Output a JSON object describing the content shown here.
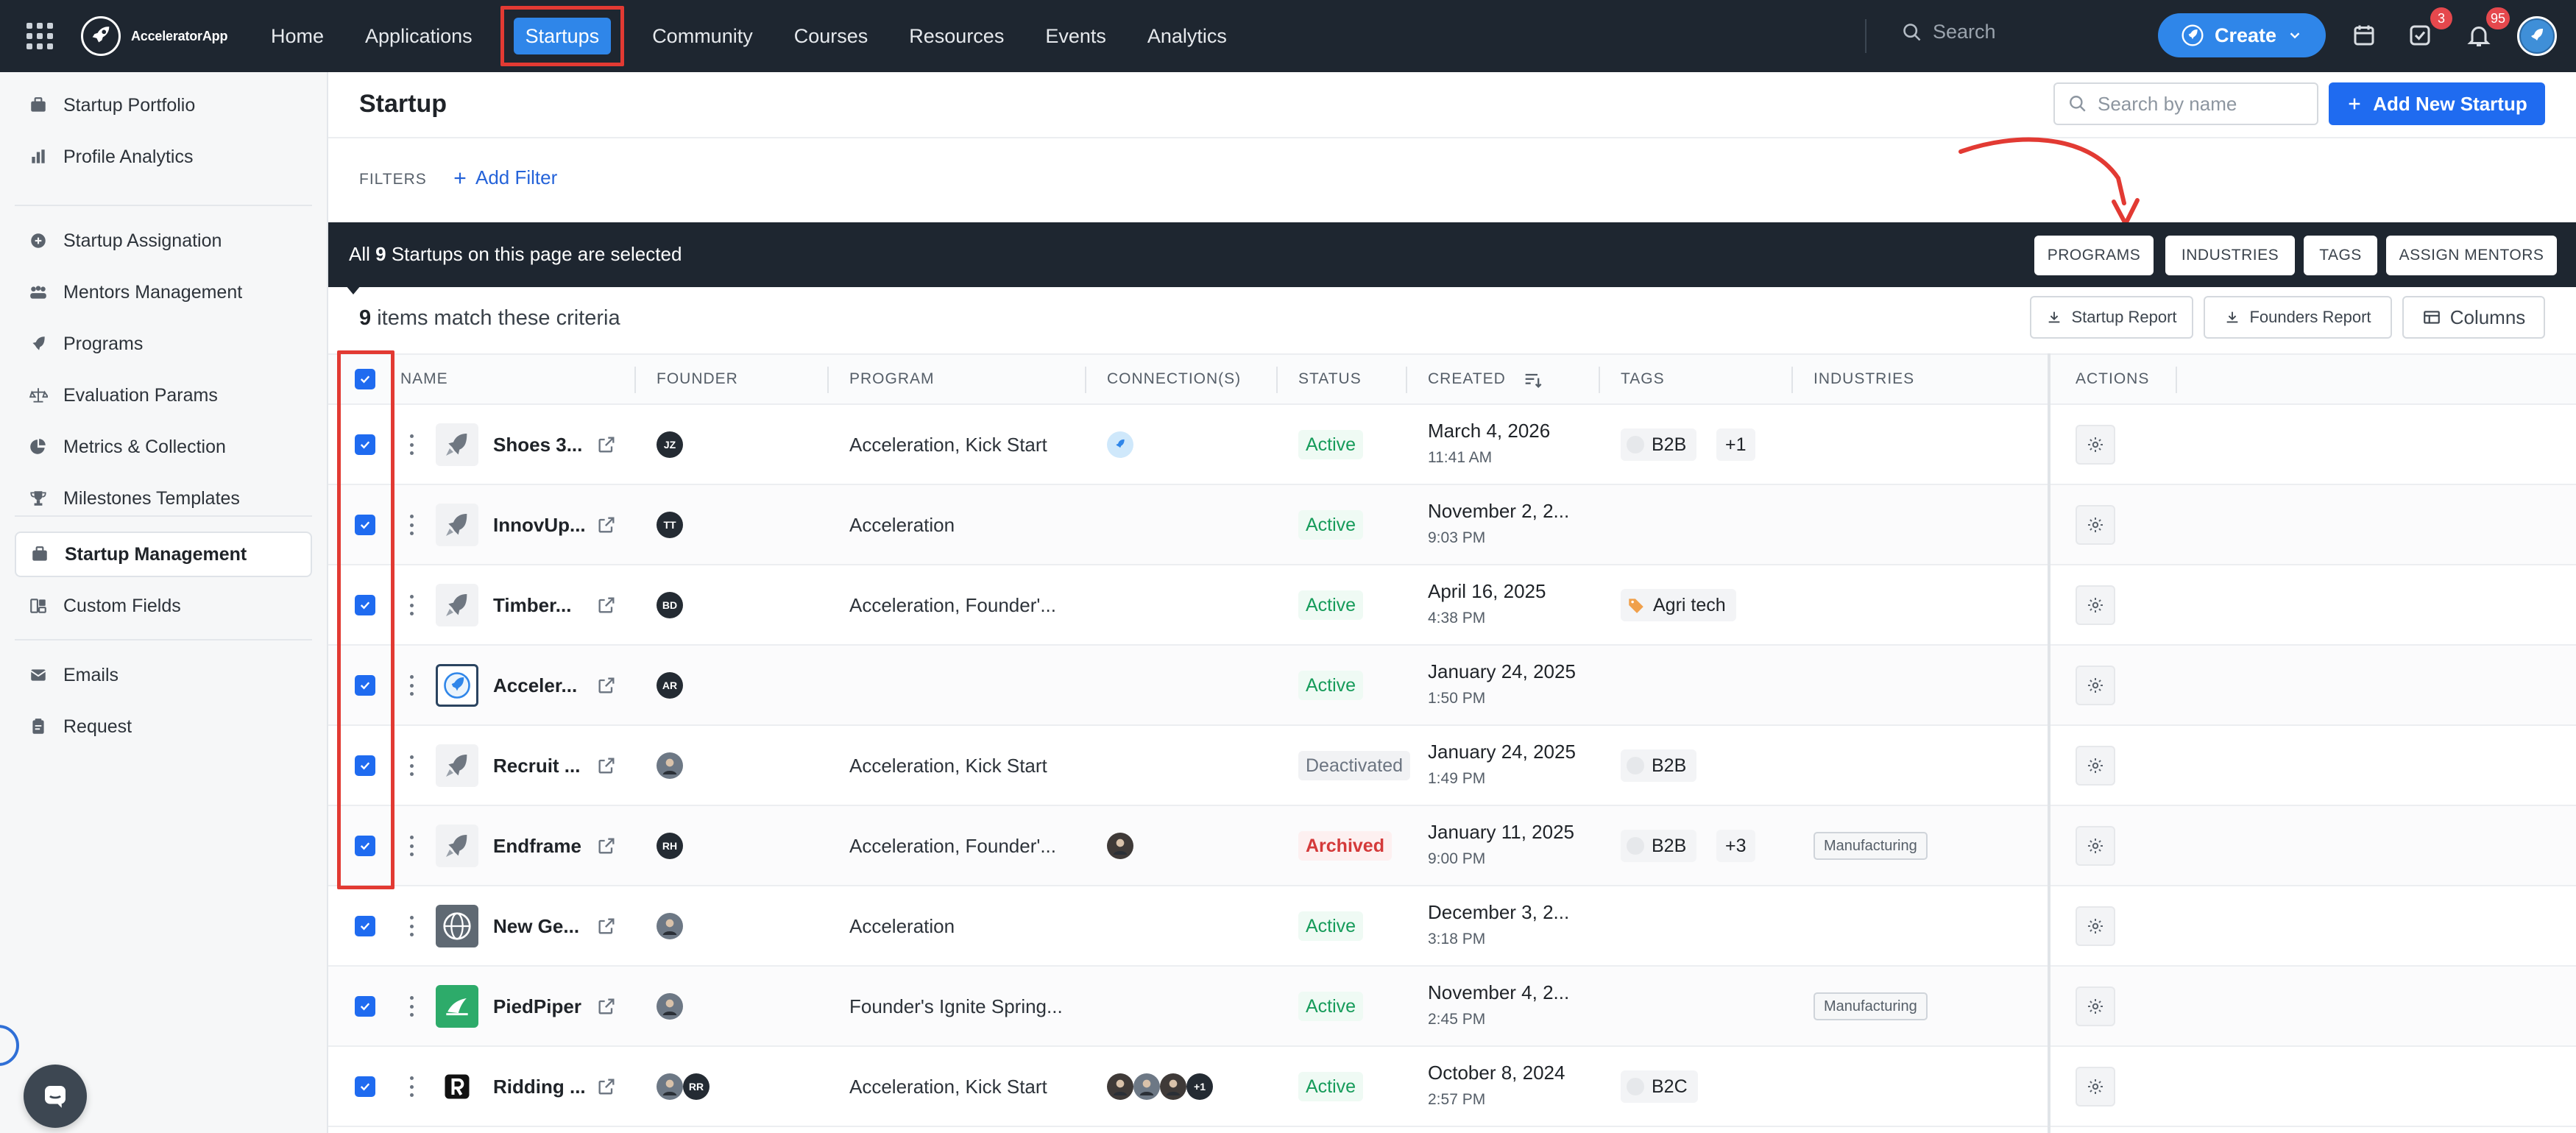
{
  "app": {
    "name": "AcceleratorApp"
  },
  "topnav": {
    "items": [
      {
        "label": "Home",
        "active": false
      },
      {
        "label": "Applications",
        "active": false
      },
      {
        "label": "Startups",
        "active": true
      },
      {
        "label": "Community",
        "active": false
      },
      {
        "label": "Courses",
        "active": false
      },
      {
        "label": "Resources",
        "active": false
      },
      {
        "label": "Events",
        "active": false
      },
      {
        "label": "Analytics",
        "active": false
      }
    ],
    "search_placeholder": "Search",
    "create_label": "Create",
    "tasks_badge": "3",
    "notifications_badge": "95"
  },
  "sidebar": {
    "groups": [
      [
        {
          "label": "Startup Portfolio",
          "icon": "briefcase-icon"
        },
        {
          "label": "Profile Analytics",
          "icon": "bar-chart-icon"
        }
      ],
      [
        {
          "label": "Startup Assignation",
          "icon": "plus-circle-icon"
        },
        {
          "label": "Mentors Management",
          "icon": "users-icon"
        },
        {
          "label": "Programs",
          "icon": "rocket-icon"
        },
        {
          "label": "Evaluation Params",
          "icon": "scale-icon"
        },
        {
          "label": "Metrics & Collection",
          "icon": "pie-chart-icon"
        },
        {
          "label": "Milestones Templates",
          "icon": "trophy-icon"
        }
      ],
      [
        {
          "label": "Startup Management",
          "icon": "briefcase-icon",
          "active": true
        },
        {
          "label": "Custom Fields",
          "icon": "custom-fields-icon"
        }
      ],
      [
        {
          "label": "Emails",
          "icon": "mail-icon"
        },
        {
          "label": "Request",
          "icon": "clipboard-icon"
        }
      ]
    ]
  },
  "page": {
    "title": "Startup",
    "search_placeholder": "Search by name",
    "add_button": "Add New Startup",
    "filters_label": "FILTERS",
    "add_filter": "Add Filter"
  },
  "selection_bar": {
    "text_prefix": "All ",
    "count": "9",
    "text_suffix": " Startups on this page are selected",
    "buttons": [
      "PROGRAMS",
      "INDUSTRIES",
      "TAGS",
      "ASSIGN MENTORS"
    ]
  },
  "results": {
    "count": "9",
    "text": " items match these criteria",
    "startup_report": "Startup Report",
    "founders_report": "Founders Report",
    "columns": "Columns"
  },
  "columns": [
    "NAME",
    "FOUNDER",
    "PROGRAM",
    "CONNECTION(S)",
    "STATUS",
    "CREATED",
    "TAGS",
    "INDUSTRIES",
    "ACTIONS"
  ],
  "rows": [
    {
      "name": "Shoes 3...",
      "logo": "rocket",
      "founders": [
        "JZ"
      ],
      "program": "Acceleration, Kick Start",
      "connections": [
        "logo"
      ],
      "status": "Active",
      "status_type": "active",
      "date": "March 4, 2026",
      "time": "11:41 AM",
      "tags": [
        "B2B"
      ],
      "tags_more": "+1",
      "industry": ""
    },
    {
      "name": "InnovUp...",
      "logo": "rocket",
      "founders": [
        "TT"
      ],
      "program": "Acceleration",
      "connections": [],
      "status": "Active",
      "status_type": "active",
      "date": "November 2, 2...",
      "time": "9:03 PM",
      "tags": [],
      "tags_more": "",
      "industry": ""
    },
    {
      "name": "Timber...",
      "logo": "rocket",
      "founders": [
        "BD"
      ],
      "program": "Acceleration, Founder'...",
      "connections": [],
      "status": "Active",
      "status_type": "active",
      "date": "April 16, 2025",
      "time": "4:38 PM",
      "tags": [
        "Agri tech"
      ],
      "tags_more": "",
      "industry": ""
    },
    {
      "name": "Acceler...",
      "logo": "accel",
      "founders": [
        "AR"
      ],
      "program": "",
      "connections": [],
      "status": "Active",
      "status_type": "active",
      "date": "January 24, 2025",
      "time": "1:50 PM",
      "tags": [],
      "tags_more": "",
      "industry": ""
    },
    {
      "name": "Recruit ...",
      "logo": "rocket",
      "founders": [
        "photo"
      ],
      "program": "Acceleration, Kick Start",
      "connections": [],
      "status": "Deactivated",
      "status_type": "deactivated",
      "date": "January 24, 2025",
      "time": "1:49 PM",
      "tags": [
        "B2B"
      ],
      "tags_more": "",
      "industry": ""
    },
    {
      "name": "Endframe",
      "logo": "rocket",
      "founders": [
        "RH"
      ],
      "program": "Acceleration, Founder'...",
      "connections": [
        "photo"
      ],
      "status": "Archived",
      "status_type": "archived",
      "date": "January 11, 2025",
      "time": "9:00 PM",
      "tags": [
        "B2B"
      ],
      "tags_more": "+3",
      "industry": "Manufacturing"
    },
    {
      "name": "New Ge...",
      "logo": "globe",
      "founders": [
        "photo"
      ],
      "program": "Acceleration",
      "connections": [],
      "status": "Active",
      "status_type": "active",
      "date": "December 3, 2...",
      "time": "3:18 PM",
      "tags": [],
      "tags_more": "",
      "industry": ""
    },
    {
      "name": "PiedPiper",
      "logo": "pied",
      "founders": [
        "photo"
      ],
      "program": "Founder's Ignite Spring...",
      "connections": [],
      "status": "Active",
      "status_type": "active",
      "date": "November 4, 2...",
      "time": "2:45 PM",
      "tags": [],
      "tags_more": "",
      "industry": "Manufacturing"
    },
    {
      "name": "Ridding ...",
      "logo": "ridding",
      "founders": [
        "photo",
        "RR"
      ],
      "program": "Acceleration, Kick Start",
      "connections": [
        "photo",
        "photo",
        "photo",
        "+1"
      ],
      "status": "Active",
      "status_type": "active",
      "date": "October 8, 2024",
      "time": "2:57 PM",
      "tags": [
        "B2C"
      ],
      "tags_more": "",
      "industry": ""
    }
  ]
}
